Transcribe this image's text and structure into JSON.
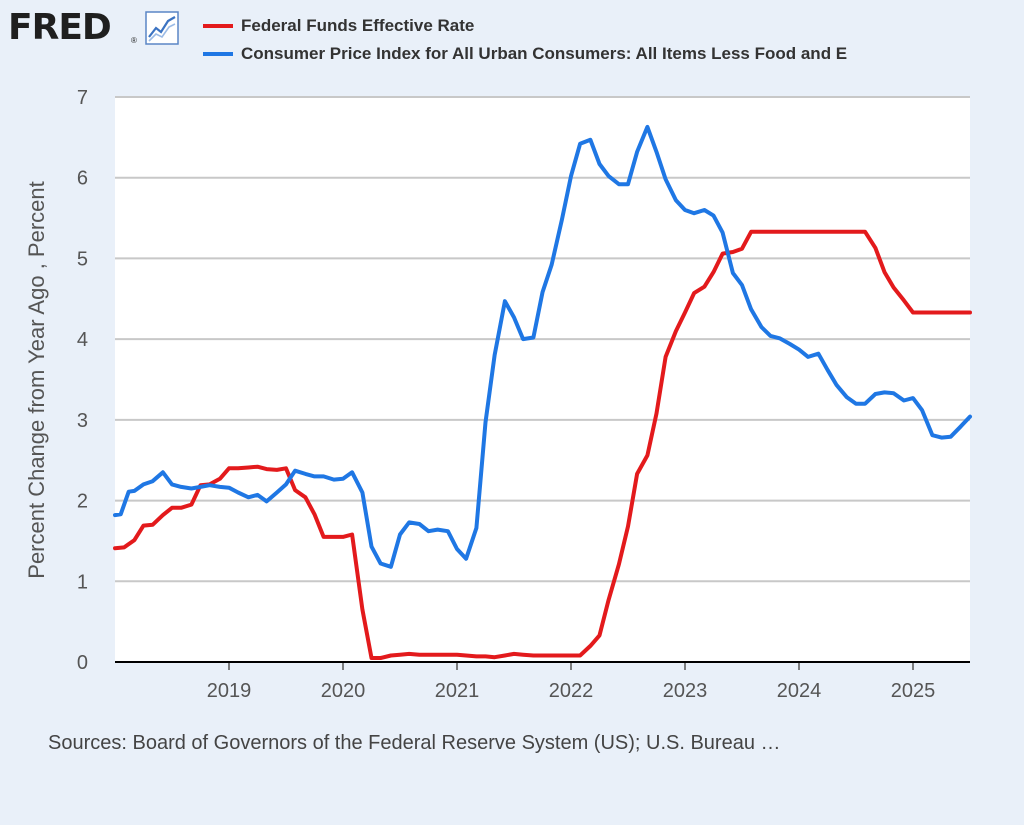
{
  "header": {
    "logo_text": "FRED",
    "logo_reg": "®",
    "logo_icon": "line-chart-icon"
  },
  "colors": {
    "series1": "#e31a1c",
    "series2": "#1f77e4",
    "plot_bg": "#ffffff",
    "page_bg": "#e9f0f9",
    "grid": "#c8c8c8"
  },
  "footer": {
    "sources": "Sources: Board of Governors of the Federal Reserve System (US); U.S. Bureau …"
  },
  "chart_data": {
    "type": "line",
    "title": "",
    "xlabel": "",
    "ylabel": "Percent Change from Year Ago , Percent",
    "xlim": [
      2018.0,
      2025.5
    ],
    "ylim": [
      0,
      7
    ],
    "yticks": [
      "0",
      "1",
      "2",
      "3",
      "4",
      "5",
      "6",
      "7"
    ],
    "xticks": [
      "2019",
      "2020",
      "2021",
      "2022",
      "2023",
      "2024",
      "2025"
    ],
    "legend_position": "top",
    "series": [
      {
        "name": "Federal Funds Effective Rate",
        "color": "#e31a1c",
        "points": [
          [
            2018.0,
            1.41
          ],
          [
            2018.08,
            1.42
          ],
          [
            2018.17,
            1.51
          ],
          [
            2018.25,
            1.69
          ],
          [
            2018.33,
            1.7
          ],
          [
            2018.42,
            1.82
          ],
          [
            2018.5,
            1.91
          ],
          [
            2018.58,
            1.91
          ],
          [
            2018.67,
            1.95
          ],
          [
            2018.75,
            2.19
          ],
          [
            2018.83,
            2.2
          ],
          [
            2018.92,
            2.27
          ],
          [
            2019.0,
            2.4
          ],
          [
            2019.08,
            2.4
          ],
          [
            2019.17,
            2.41
          ],
          [
            2019.25,
            2.42
          ],
          [
            2019.33,
            2.39
          ],
          [
            2019.42,
            2.38
          ],
          [
            2019.5,
            2.4
          ],
          [
            2019.58,
            2.13
          ],
          [
            2019.67,
            2.04
          ],
          [
            2019.75,
            1.83
          ],
          [
            2019.83,
            1.55
          ],
          [
            2019.92,
            1.55
          ],
          [
            2020.0,
            1.55
          ],
          [
            2020.08,
            1.58
          ],
          [
            2020.17,
            0.65
          ],
          [
            2020.25,
            0.05
          ],
          [
            2020.33,
            0.05
          ],
          [
            2020.42,
            0.08
          ],
          [
            2020.5,
            0.09
          ],
          [
            2020.58,
            0.1
          ],
          [
            2020.67,
            0.09
          ],
          [
            2020.75,
            0.09
          ],
          [
            2020.83,
            0.09
          ],
          [
            2020.92,
            0.09
          ],
          [
            2021.0,
            0.09
          ],
          [
            2021.08,
            0.08
          ],
          [
            2021.17,
            0.07
          ],
          [
            2021.25,
            0.07
          ],
          [
            2021.33,
            0.06
          ],
          [
            2021.42,
            0.08
          ],
          [
            2021.5,
            0.1
          ],
          [
            2021.58,
            0.09
          ],
          [
            2021.67,
            0.08
          ],
          [
            2021.75,
            0.08
          ],
          [
            2021.83,
            0.08
          ],
          [
            2021.92,
            0.08
          ],
          [
            2022.0,
            0.08
          ],
          [
            2022.08,
            0.08
          ],
          [
            2022.17,
            0.2
          ],
          [
            2022.25,
            0.33
          ],
          [
            2022.33,
            0.77
          ],
          [
            2022.42,
            1.21
          ],
          [
            2022.5,
            1.68
          ],
          [
            2022.58,
            2.33
          ],
          [
            2022.67,
            2.56
          ],
          [
            2022.75,
            3.08
          ],
          [
            2022.83,
            3.78
          ],
          [
            2022.92,
            4.1
          ],
          [
            2023.0,
            4.33
          ],
          [
            2023.08,
            4.57
          ],
          [
            2023.17,
            4.65
          ],
          [
            2023.25,
            4.83
          ],
          [
            2023.33,
            5.06
          ],
          [
            2023.42,
            5.08
          ],
          [
            2023.5,
            5.12
          ],
          [
            2023.58,
            5.33
          ],
          [
            2023.67,
            5.33
          ],
          [
            2023.75,
            5.33
          ],
          [
            2023.83,
            5.33
          ],
          [
            2023.92,
            5.33
          ],
          [
            2024.0,
            5.33
          ],
          [
            2024.08,
            5.33
          ],
          [
            2024.17,
            5.33
          ],
          [
            2024.25,
            5.33
          ],
          [
            2024.33,
            5.33
          ],
          [
            2024.42,
            5.33
          ],
          [
            2024.5,
            5.33
          ],
          [
            2024.58,
            5.33
          ],
          [
            2024.67,
            5.13
          ],
          [
            2024.75,
            4.83
          ],
          [
            2024.83,
            4.64
          ],
          [
            2024.92,
            4.48
          ],
          [
            2025.0,
            4.33
          ],
          [
            2025.08,
            4.33
          ],
          [
            2025.17,
            4.33
          ],
          [
            2025.25,
            4.33
          ],
          [
            2025.33,
            4.33
          ],
          [
            2025.42,
            4.33
          ],
          [
            2025.5,
            4.33
          ]
        ]
      },
      {
        "name": "Consumer Price Index for All Urban Consumers: All Items Less Food and E",
        "color": "#1f77e4",
        "points": [
          [
            2018.0,
            1.82
          ],
          [
            2018.05,
            1.83
          ],
          [
            2018.12,
            2.11
          ],
          [
            2018.17,
            2.12
          ],
          [
            2018.25,
            2.2
          ],
          [
            2018.33,
            2.24
          ],
          [
            2018.42,
            2.35
          ],
          [
            2018.5,
            2.2
          ],
          [
            2018.58,
            2.17
          ],
          [
            2018.67,
            2.15
          ],
          [
            2018.75,
            2.17
          ],
          [
            2018.83,
            2.19
          ],
          [
            2018.92,
            2.17
          ],
          [
            2019.0,
            2.16
          ],
          [
            2019.08,
            2.1
          ],
          [
            2019.17,
            2.04
          ],
          [
            2019.25,
            2.07
          ],
          [
            2019.33,
            1.99
          ],
          [
            2019.42,
            2.1
          ],
          [
            2019.5,
            2.2
          ],
          [
            2019.58,
            2.37
          ],
          [
            2019.67,
            2.33
          ],
          [
            2019.75,
            2.3
          ],
          [
            2019.83,
            2.3
          ],
          [
            2019.92,
            2.26
          ],
          [
            2020.0,
            2.27
          ],
          [
            2020.08,
            2.35
          ],
          [
            2020.17,
            2.1
          ],
          [
            2020.25,
            1.43
          ],
          [
            2020.33,
            1.22
          ],
          [
            2020.42,
            1.18
          ],
          [
            2020.5,
            1.58
          ],
          [
            2020.58,
            1.73
          ],
          [
            2020.67,
            1.71
          ],
          [
            2020.75,
            1.62
          ],
          [
            2020.83,
            1.64
          ],
          [
            2020.92,
            1.62
          ],
          [
            2021.0,
            1.4
          ],
          [
            2021.08,
            1.28
          ],
          [
            2021.17,
            1.66
          ],
          [
            2021.25,
            2.97
          ],
          [
            2021.33,
            3.8
          ],
          [
            2021.42,
            4.47
          ],
          [
            2021.5,
            4.27
          ],
          [
            2021.58,
            4.0
          ],
          [
            2021.67,
            4.02
          ],
          [
            2021.75,
            4.58
          ],
          [
            2021.83,
            4.92
          ],
          [
            2021.92,
            5.48
          ],
          [
            2022.0,
            6.02
          ],
          [
            2022.08,
            6.42
          ],
          [
            2022.17,
            6.47
          ],
          [
            2022.25,
            6.17
          ],
          [
            2022.33,
            6.02
          ],
          [
            2022.42,
            5.92
          ],
          [
            2022.5,
            5.92
          ],
          [
            2022.58,
            6.32
          ],
          [
            2022.67,
            6.63
          ],
          [
            2022.75,
            6.32
          ],
          [
            2022.83,
            5.98
          ],
          [
            2022.92,
            5.72
          ],
          [
            2023.0,
            5.6
          ],
          [
            2023.08,
            5.56
          ],
          [
            2023.17,
            5.6
          ],
          [
            2023.25,
            5.53
          ],
          [
            2023.33,
            5.32
          ],
          [
            2023.42,
            4.82
          ],
          [
            2023.5,
            4.67
          ],
          [
            2023.58,
            4.37
          ],
          [
            2023.67,
            4.15
          ],
          [
            2023.75,
            4.04
          ],
          [
            2023.83,
            4.01
          ],
          [
            2023.92,
            3.94
          ],
          [
            2024.0,
            3.87
          ],
          [
            2024.08,
            3.78
          ],
          [
            2024.17,
            3.82
          ],
          [
            2024.25,
            3.62
          ],
          [
            2024.33,
            3.43
          ],
          [
            2024.42,
            3.28
          ],
          [
            2024.5,
            3.2
          ],
          [
            2024.58,
            3.2
          ],
          [
            2024.67,
            3.32
          ],
          [
            2024.75,
            3.34
          ],
          [
            2024.83,
            3.33
          ],
          [
            2024.92,
            3.24
          ],
          [
            2025.0,
            3.27
          ],
          [
            2025.08,
            3.12
          ],
          [
            2025.17,
            2.81
          ],
          [
            2025.25,
            2.78
          ],
          [
            2025.33,
            2.79
          ],
          [
            2025.42,
            2.92
          ],
          [
            2025.5,
            3.04
          ]
        ]
      }
    ]
  }
}
